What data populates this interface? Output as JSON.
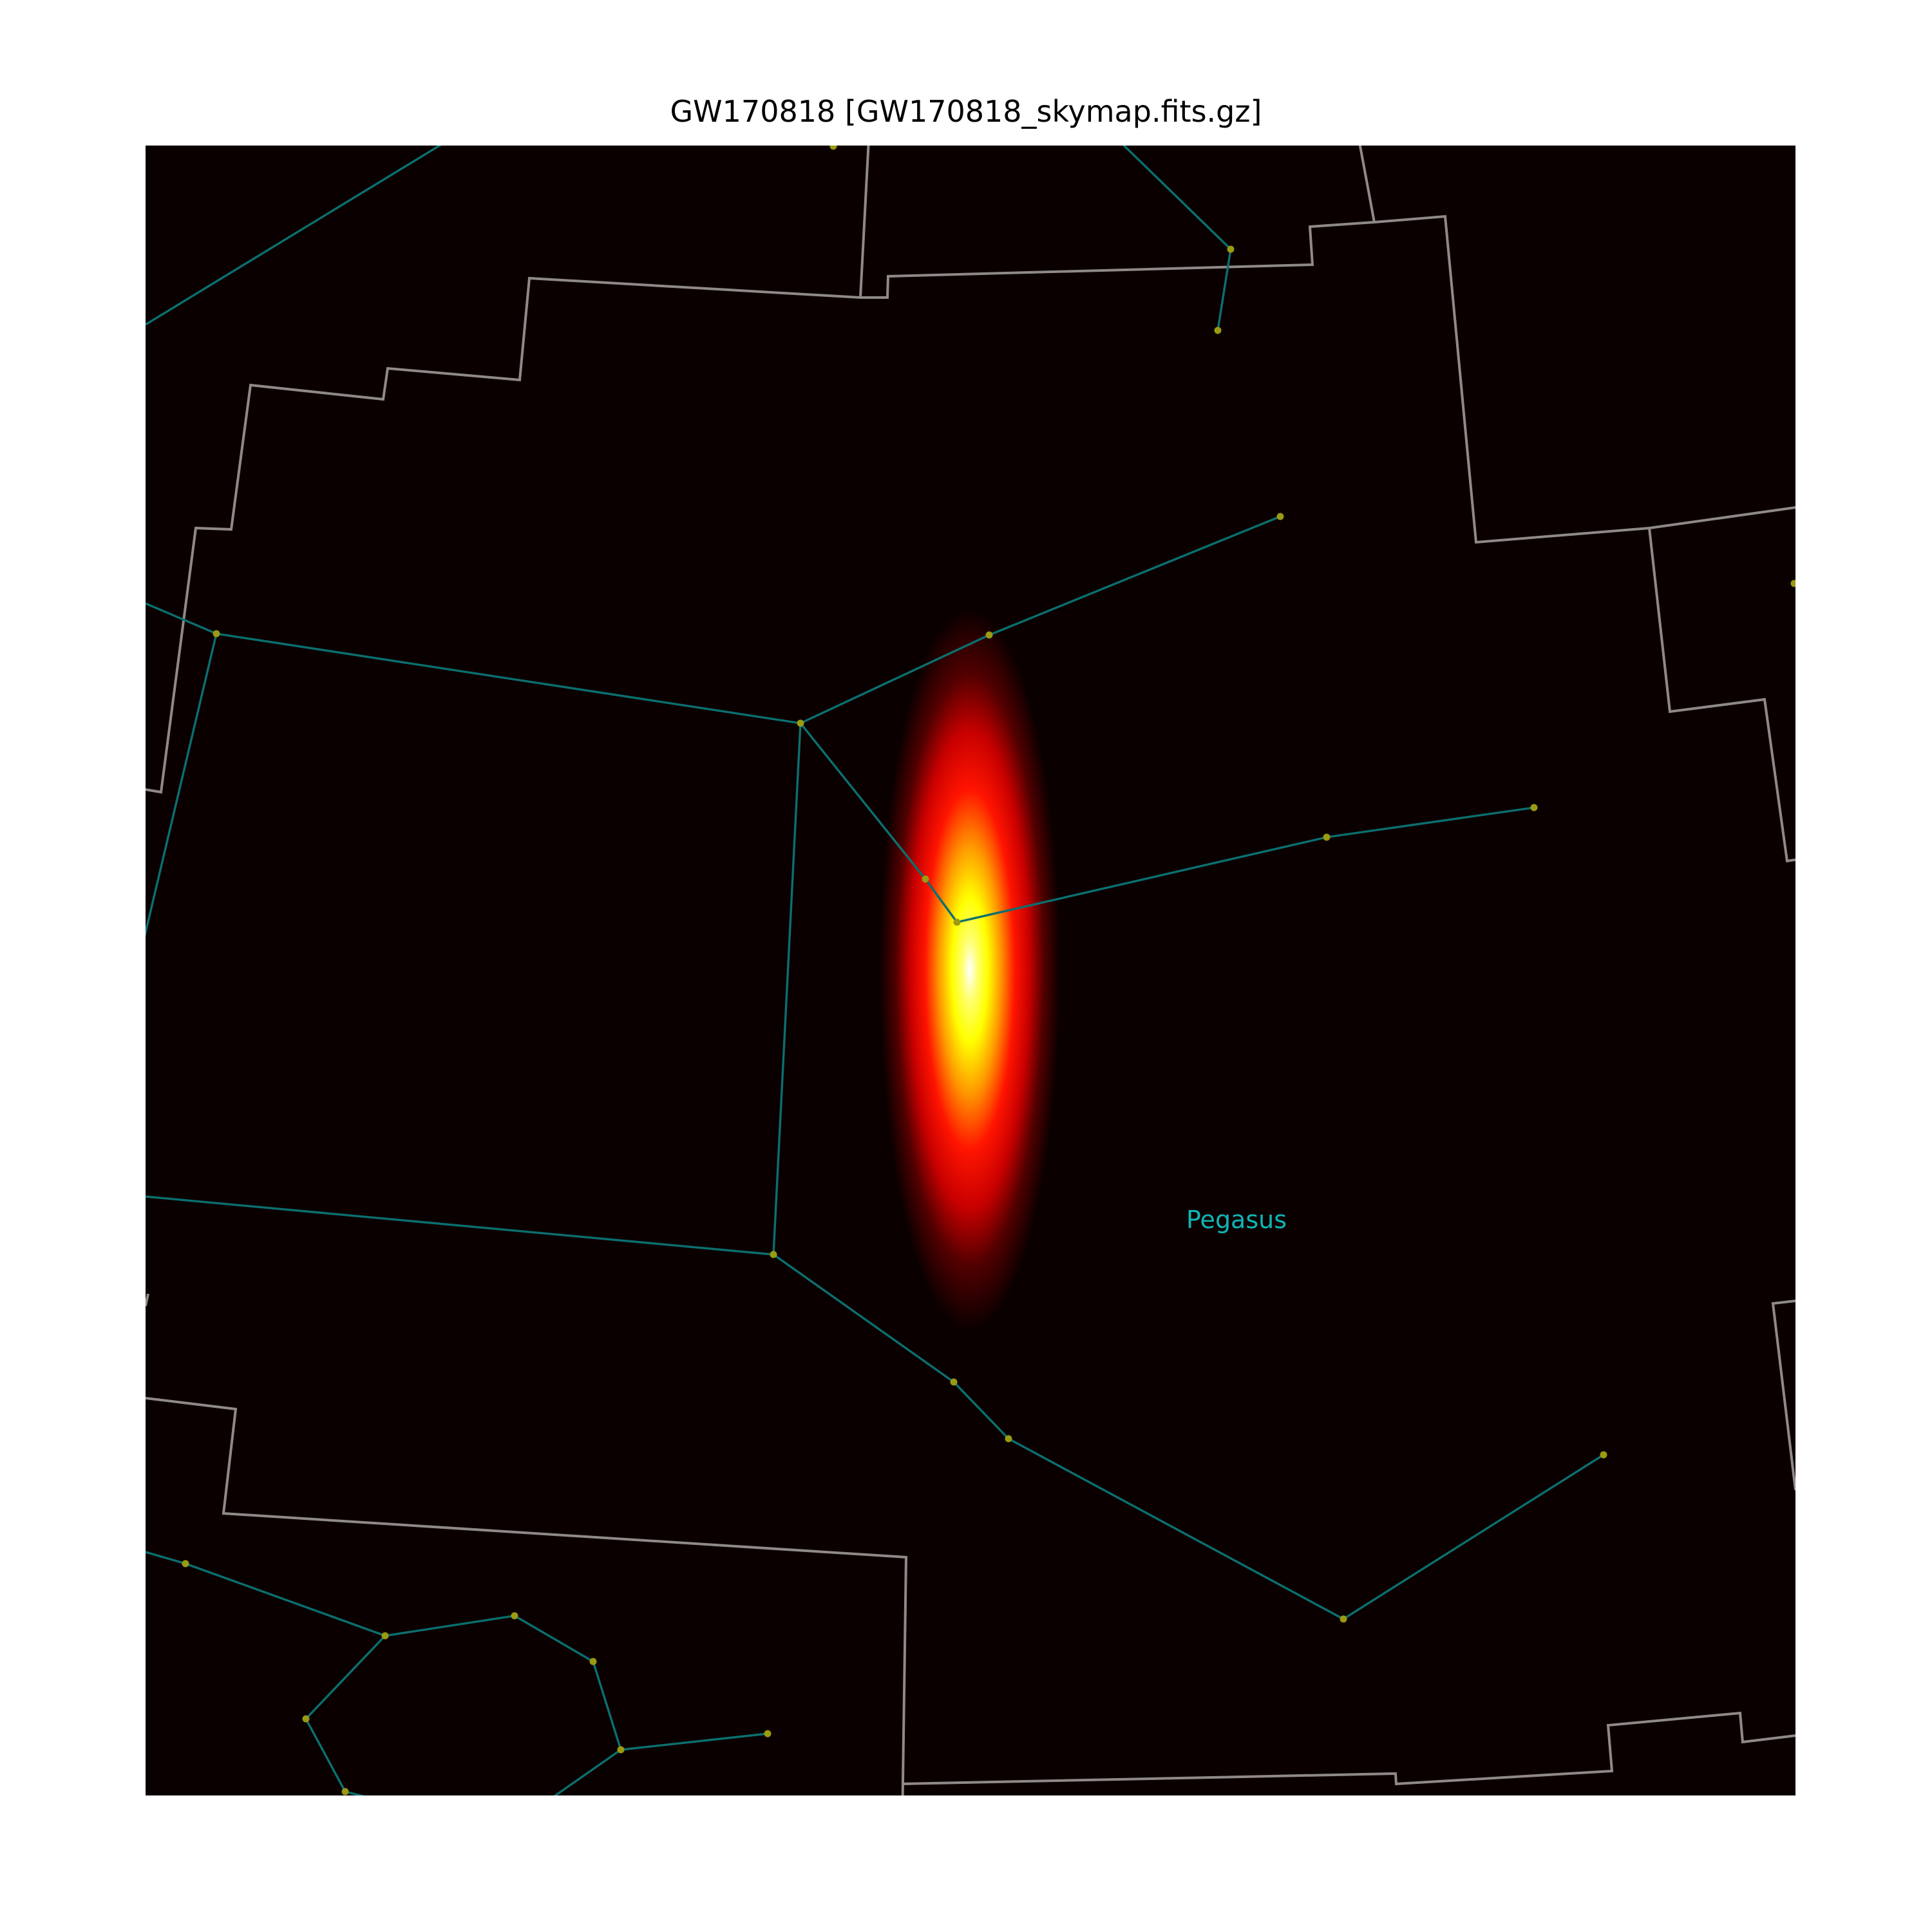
{
  "title": "GW170818 [GW170818_skymap.fits.gz]",
  "colors": {
    "background": "#0b0000",
    "boundary_lines": "#8f8a88",
    "constellation_lines": "#0b6f6f",
    "stars": "#9a9a13",
    "label": "#10b5b5",
    "heat_colormap": [
      "#0b0000",
      "#ff0000",
      "#ffff00",
      "#ffffff"
    ]
  },
  "constellation_labels": [
    {
      "name": "Pegasus"
    }
  ]
}
